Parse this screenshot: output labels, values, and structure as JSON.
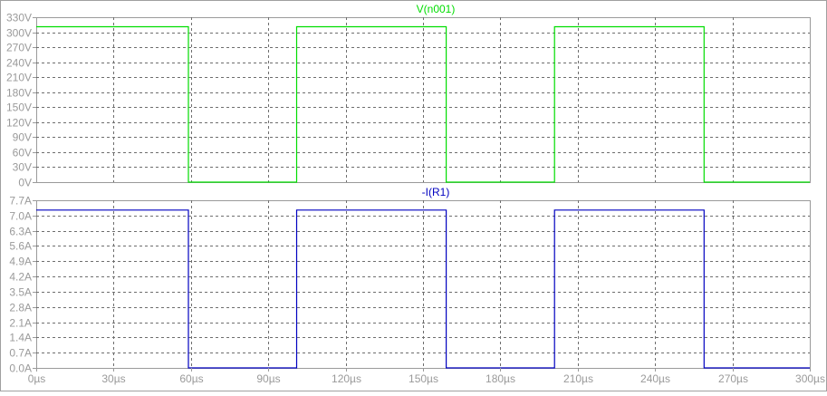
{
  "window": {
    "border_color": "#a0a0a0",
    "background": "#ffffff",
    "frame_color": "#9a9a9a",
    "grid_color": "#6e6e6e",
    "tick_label_color": "#9a9a9a"
  },
  "chart_data": [
    {
      "type": "line",
      "title": "V(n001)",
      "title_color": "#00dd00",
      "grid": true,
      "xlim": [
        0,
        300
      ],
      "ylim": [
        0,
        330
      ],
      "x_ticks": [
        0,
        30,
        60,
        90,
        120,
        150,
        180,
        210,
        240,
        270,
        300
      ],
      "y_ticks": [
        0,
        30,
        60,
        90,
        120,
        150,
        180,
        210,
        240,
        270,
        300,
        330
      ],
      "y_tick_labels": [
        "0V",
        "30V",
        "60V",
        "90V",
        "120V",
        "150V",
        "180V",
        "210V",
        "240V",
        "270V",
        "300V",
        "330V"
      ],
      "series": [
        {
          "name": "V(n001)",
          "color": "#00dd00",
          "x": [
            0,
            59,
            59,
            101,
            101,
            159,
            159,
            201,
            201,
            259,
            259,
            300
          ],
          "values": [
            311,
            311,
            0,
            0,
            311,
            311,
            0,
            0,
            311,
            311,
            0,
            0
          ]
        }
      ]
    },
    {
      "type": "line",
      "title": "-I(R1)",
      "title_color": "#0000c0",
      "grid": true,
      "xlim": [
        0,
        300
      ],
      "ylim": [
        0,
        7.7
      ],
      "x_ticks": [
        0,
        30,
        60,
        90,
        120,
        150,
        180,
        210,
        240,
        270,
        300
      ],
      "x_tick_labels": [
        "0µs",
        "30µs",
        "60µs",
        "90µs",
        "120µs",
        "150µs",
        "180µs",
        "210µs",
        "240µs",
        "270µs",
        "300µs"
      ],
      "y_ticks": [
        0,
        0.7,
        1.4,
        2.1,
        2.8,
        3.5,
        4.2,
        4.9,
        5.6,
        6.3,
        7.0,
        7.7
      ],
      "y_tick_labels": [
        "0.0A",
        "0.7A",
        "1.4A",
        "2.1A",
        "2.8A",
        "3.5A",
        "4.2A",
        "4.9A",
        "5.6A",
        "6.3A",
        "7.0A",
        "7.7A"
      ],
      "series": [
        {
          "name": "-I(R1)",
          "color": "#0000c0",
          "x": [
            0,
            59,
            59,
            101,
            101,
            159,
            159,
            201,
            201,
            259,
            259,
            300
          ],
          "values": [
            7.25,
            7.25,
            0,
            0,
            7.25,
            7.25,
            0,
            0,
            7.25,
            7.25,
            0,
            0
          ]
        }
      ]
    }
  ]
}
